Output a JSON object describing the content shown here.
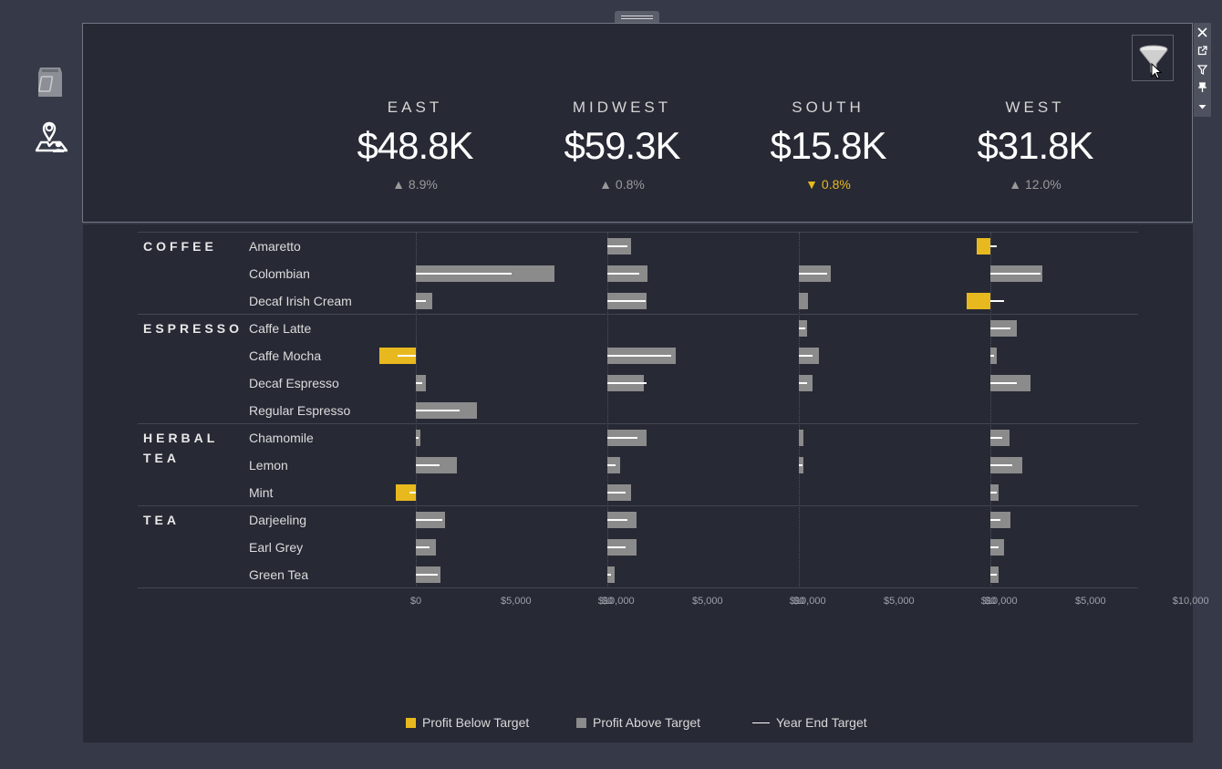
{
  "kpis": [
    {
      "region": "EAST",
      "value": "$48.8K",
      "delta": "8.9%",
      "dir": "up"
    },
    {
      "region": "MIDWEST",
      "value": "$59.3K",
      "delta": "0.8%",
      "dir": "up"
    },
    {
      "region": "SOUTH",
      "value": "$15.8K",
      "delta": "0.8%",
      "dir": "down"
    },
    {
      "region": "WEST",
      "value": "$31.8K",
      "delta": "12.0%",
      "dir": "up"
    }
  ],
  "toolbar": {
    "icons": [
      "close-icon",
      "pop-out-icon",
      "filter-icon",
      "pin-icon",
      "dropdown-icon"
    ]
  },
  "side_icons": [
    "coffee-bag-icon",
    "map-user-icon"
  ],
  "colors": {
    "below": "#e8b91f",
    "above": "#8b8b8b",
    "target": "#ffffff",
    "background": "#272a35"
  },
  "chart_data": {
    "type": "bar",
    "regions": [
      "East",
      "Midwest",
      "South",
      "West"
    ],
    "tick_labels": [
      "$0",
      "$5,000",
      "$10,000"
    ],
    "ticks": [
      0,
      5000,
      10000
    ],
    "xlim": [
      -2000,
      14000
    ],
    "categories": [
      {
        "name": "COFFEE",
        "name_lines": [
          "COFFEE"
        ],
        "products": [
          {
            "name": "Amaretto",
            "profit": [
              null,
              1200,
              null,
              -700
            ],
            "target": [
              null,
              1000,
              null,
              300
            ]
          },
          {
            "name": "Colombian",
            "profit": [
              6900,
              2000,
              1600,
              2600
            ],
            "target": [
              4800,
              1600,
              1400,
              2500
            ]
          },
          {
            "name": "Decaf Irish Cream",
            "profit": [
              800,
              1950,
              450,
              -1200
            ],
            "target": [
              500,
              1900,
              null,
              700
            ]
          }
        ]
      },
      {
        "name": "ESPRESSO",
        "name_lines": [
          "ESPRESSO"
        ],
        "products": [
          {
            "name": "Caffe Latte",
            "profit": [
              null,
              null,
              400,
              1300
            ],
            "target": [
              null,
              null,
              300,
              1000
            ]
          },
          {
            "name": "Caffe Mocha",
            "profit": [
              -1800,
              3400,
              1000,
              300
            ],
            "target": [
              -900,
              3200,
              700,
              200
            ]
          },
          {
            "name": "Decaf Espresso",
            "profit": [
              500,
              1800,
              700,
              2000
            ],
            "target": [
              300,
              1950,
              400,
              1300
            ]
          },
          {
            "name": "Regular Espresso",
            "profit": [
              3050,
              null,
              null,
              null
            ],
            "target": [
              2200,
              null,
              null,
              null
            ]
          }
        ]
      },
      {
        "name": "HERBAL TEA",
        "name_lines": [
          "HERBAL",
          "TEA"
        ],
        "products": [
          {
            "name": "Chamomile",
            "profit": [
              250,
              1950,
              250,
              950
            ],
            "target": [
              150,
              1500,
              null,
              600
            ]
          },
          {
            "name": "Lemon",
            "profit": [
              2050,
              650,
              250,
              1600
            ],
            "target": [
              1200,
              400,
              200,
              1100
            ]
          },
          {
            "name": "Mint",
            "profit": [
              -1000,
              1200,
              null,
              400
            ],
            "target": [
              -300,
              900,
              null,
              300
            ]
          }
        ]
      },
      {
        "name": "TEA",
        "name_lines": [
          "TEA"
        ],
        "products": [
          {
            "name": "Darjeeling",
            "profit": [
              1450,
              1450,
              null,
              1000
            ],
            "target": [
              1300,
              1000,
              null,
              500
            ]
          },
          {
            "name": "Earl Grey",
            "profit": [
              1000,
              1450,
              null,
              700
            ],
            "target": [
              700,
              900,
              null,
              400
            ]
          },
          {
            "name": "Green Tea",
            "profit": [
              1250,
              350,
              null,
              400
            ],
            "target": [
              1100,
              200,
              null,
              300
            ]
          }
        ]
      }
    ]
  },
  "legend": [
    {
      "label": "Profit Below Target",
      "kind": "below"
    },
    {
      "label": "Profit Above Target",
      "kind": "above"
    },
    {
      "label": "Year End Target",
      "kind": "line"
    }
  ]
}
